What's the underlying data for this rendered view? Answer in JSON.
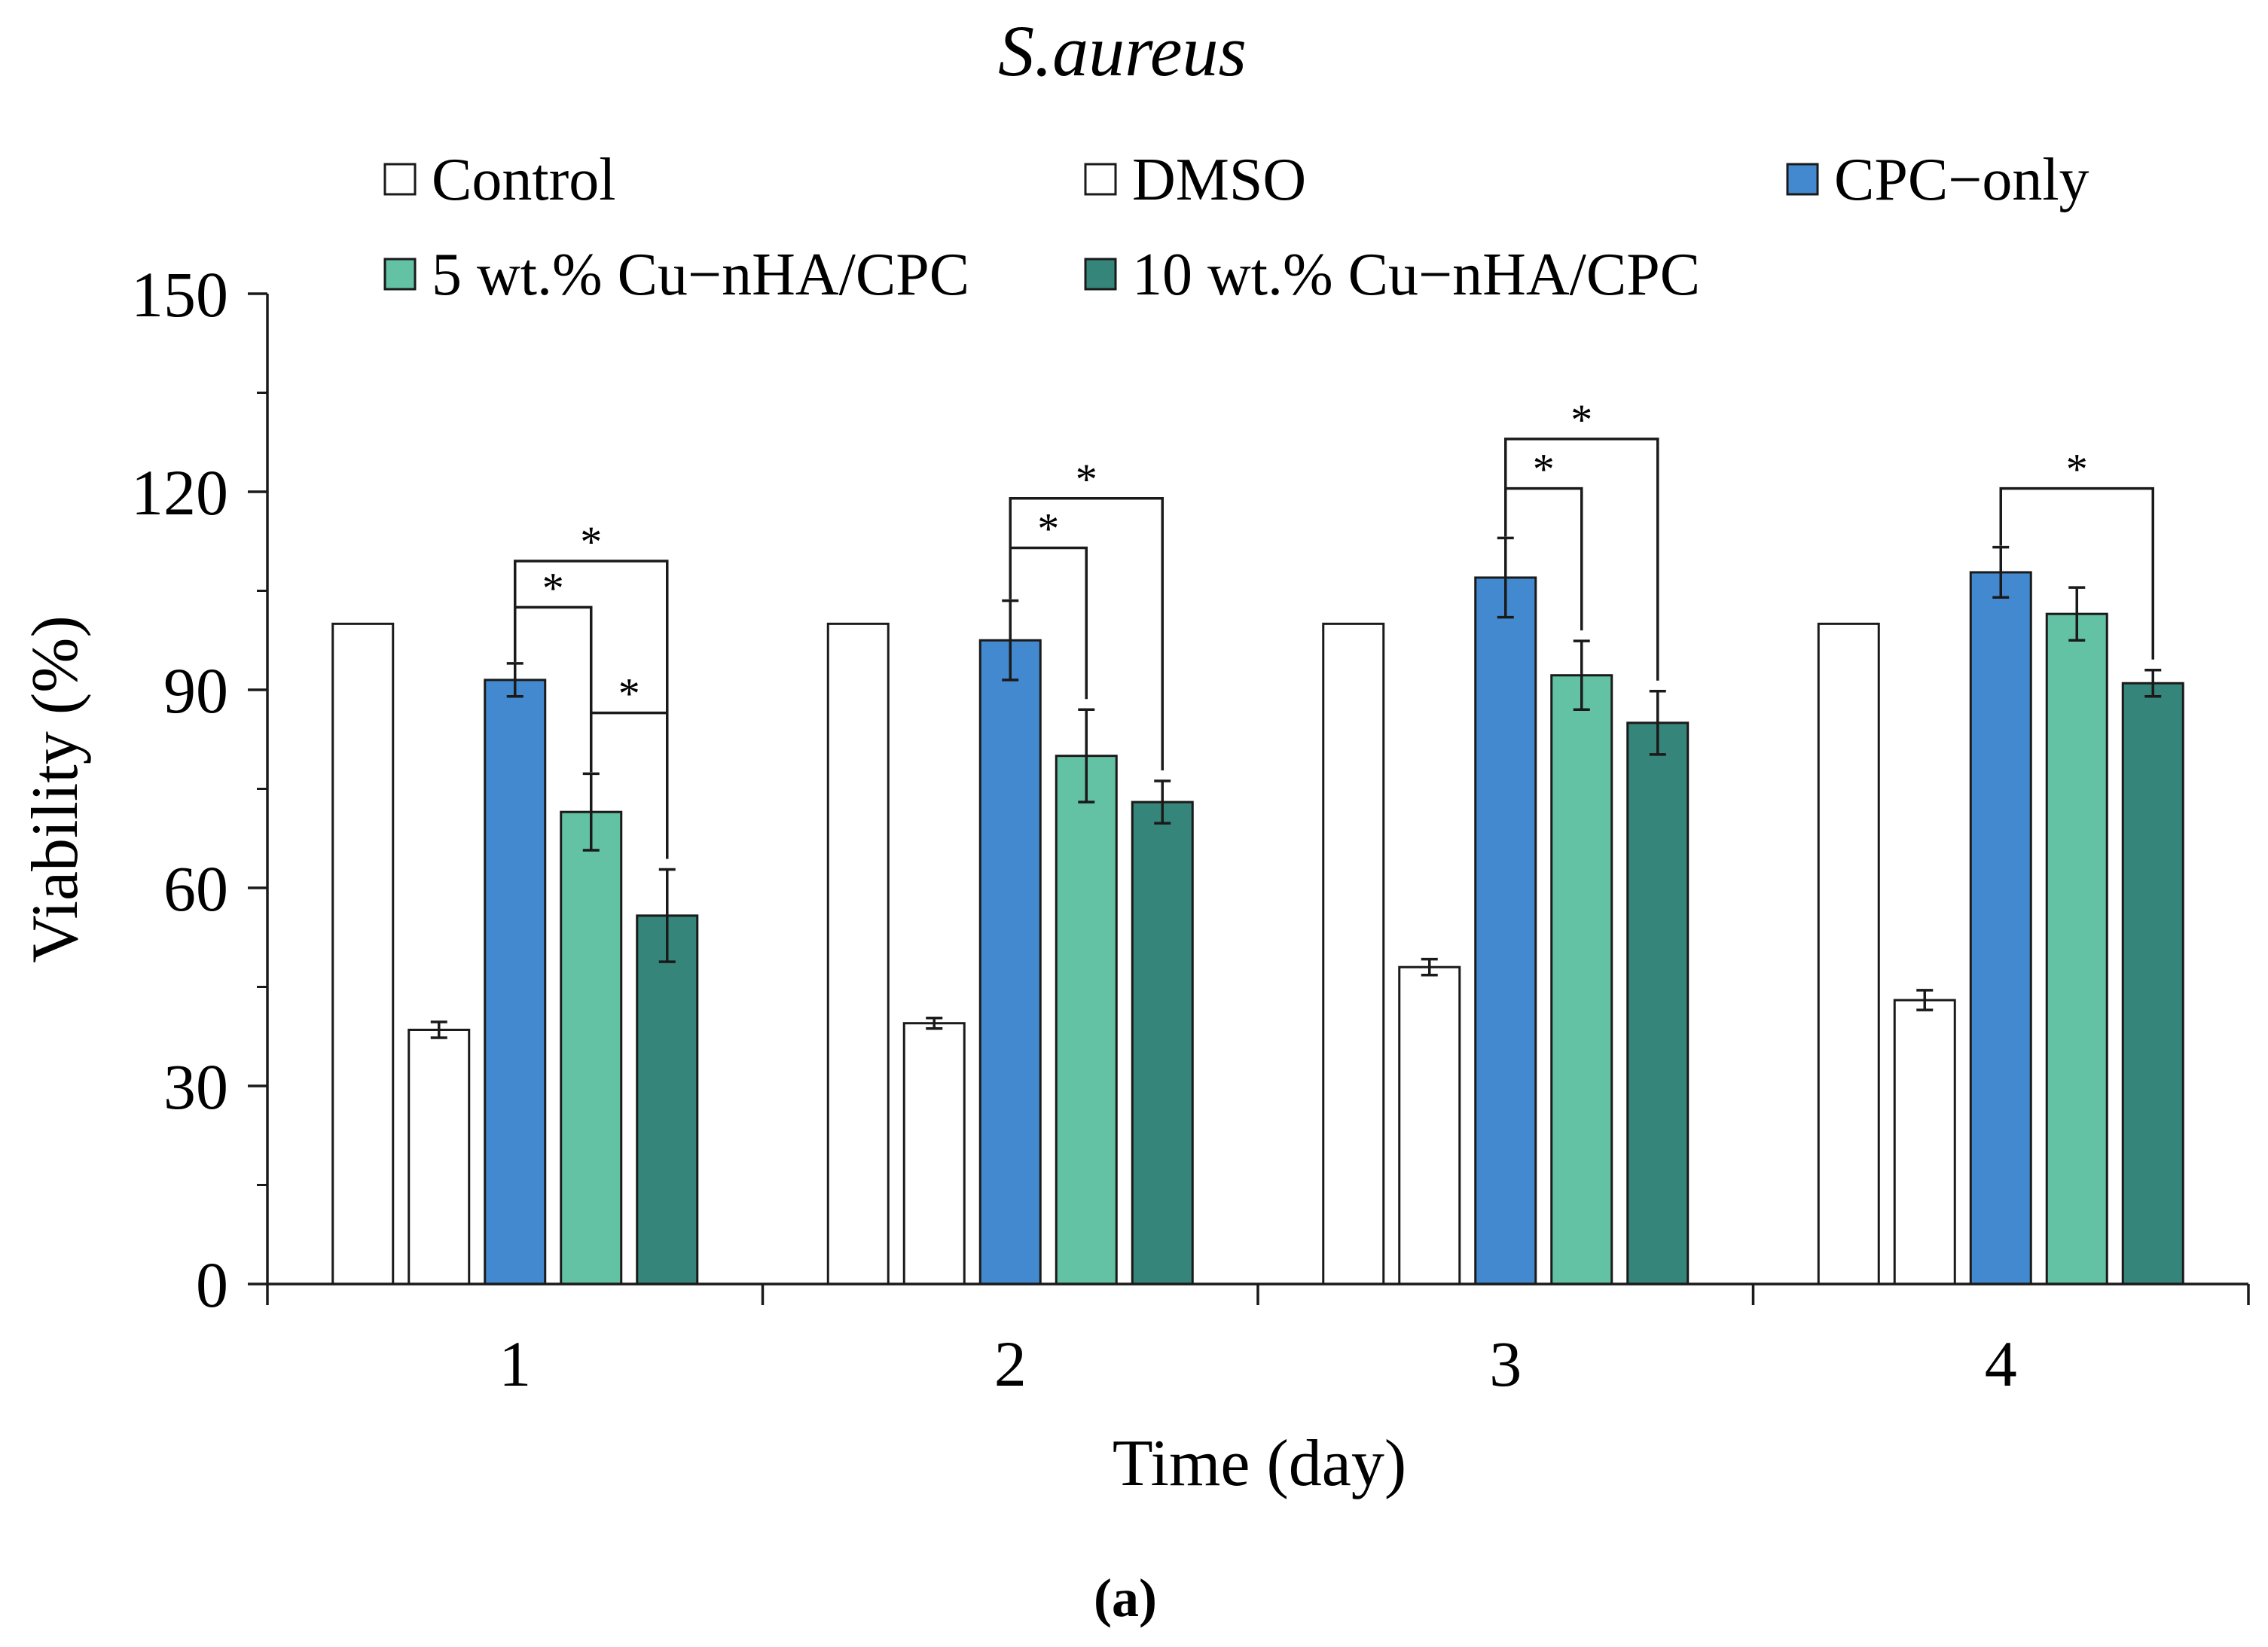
{
  "chart_data": {
    "type": "bar",
    "title": "S.aureus",
    "xlabel": "Time (day)",
    "ylabel": "Viability (%)",
    "ylim": [
      0,
      150
    ],
    "yticks": [
      0,
      30,
      60,
      90,
      120,
      150
    ],
    "categories": [
      "1",
      "2",
      "3",
      "4"
    ],
    "legend_position": "top",
    "series": [
      {
        "name": "Control",
        "color": "#ffffff",
        "values": [
          100,
          100,
          100,
          100
        ],
        "errors": [
          0,
          0,
          0,
          0
        ]
      },
      {
        "name": "DMSO",
        "color": "#ffffff",
        "values": [
          38.5,
          39.5,
          48,
          43
        ],
        "errors": [
          1.2,
          0.8,
          1.2,
          1.5
        ]
      },
      {
        "name": "CPC−only",
        "color": "#4389cf",
        "values": [
          91.5,
          97.5,
          107,
          107.8
        ],
        "errors": [
          2.5,
          6,
          6,
          3.8
        ]
      },
      {
        "name": "5 wt.% Cu−nHA/CPC",
        "color": "#63c2a4",
        "values": [
          71.5,
          80,
          92.2,
          101.5
        ],
        "errors": [
          5.8,
          7,
          5.2,
          4
        ]
      },
      {
        "name": "10 wt.% Cu−nHA/CPC",
        "color": "#35857a",
        "values": [
          55.8,
          73,
          85,
          91
        ],
        "errors": [
          7,
          3.2,
          4.8,
          2
        ]
      }
    ],
    "significance": [
      {
        "category": 0,
        "from": 2,
        "to": 3,
        "level": 102.5,
        "label": "*"
      },
      {
        "category": 0,
        "from": 2,
        "to": 4,
        "level": 109.5,
        "label": "*"
      },
      {
        "category": 0,
        "from": 3,
        "to": 4,
        "level": 86.5,
        "label": "*"
      },
      {
        "category": 1,
        "from": 2,
        "to": 3,
        "level": 111.5,
        "label": "*"
      },
      {
        "category": 1,
        "from": 2,
        "to": 4,
        "level": 119,
        "label": "*"
      },
      {
        "category": 2,
        "from": 2,
        "to": 3,
        "level": 120.5,
        "label": "*"
      },
      {
        "category": 2,
        "from": 2,
        "to": 4,
        "level": 128,
        "label": "*"
      },
      {
        "category": 3,
        "from": 2,
        "to": 4,
        "level": 120.5,
        "label": "*"
      }
    ]
  },
  "caption": "(a)"
}
